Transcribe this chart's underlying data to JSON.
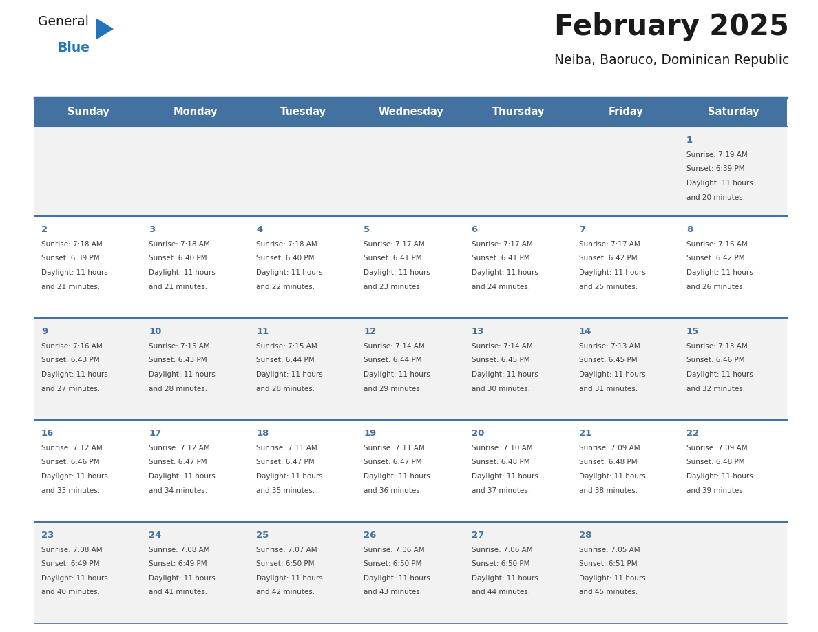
{
  "title": "February 2025",
  "subtitle": "Neiba, Baoruco, Dominican Republic",
  "days_of_week": [
    "Sunday",
    "Monday",
    "Tuesday",
    "Wednesday",
    "Thursday",
    "Friday",
    "Saturday"
  ],
  "header_bg": "#4472a0",
  "header_text": "#ffffff",
  "row_bg_even": "#f2f2f2",
  "row_bg_odd": "#ffffff",
  "separator_color": "#4472a0",
  "day_number_color": "#4472a0",
  "info_text_color": "#404040",
  "title_color": "#1a1a1a",
  "subtitle_color": "#1a1a1a",
  "logo_general_color": "#1a1a1a",
  "logo_blue_color": "#2175bc",
  "calendar_data": [
    {
      "day": 1,
      "col": 6,
      "row": 0,
      "sunrise": "7:19 AM",
      "sunset": "6:39 PM",
      "daylight_hours": 11,
      "daylight_minutes": 20
    },
    {
      "day": 2,
      "col": 0,
      "row": 1,
      "sunrise": "7:18 AM",
      "sunset": "6:39 PM",
      "daylight_hours": 11,
      "daylight_minutes": 21
    },
    {
      "day": 3,
      "col": 1,
      "row": 1,
      "sunrise": "7:18 AM",
      "sunset": "6:40 PM",
      "daylight_hours": 11,
      "daylight_minutes": 21
    },
    {
      "day": 4,
      "col": 2,
      "row": 1,
      "sunrise": "7:18 AM",
      "sunset": "6:40 PM",
      "daylight_hours": 11,
      "daylight_minutes": 22
    },
    {
      "day": 5,
      "col": 3,
      "row": 1,
      "sunrise": "7:17 AM",
      "sunset": "6:41 PM",
      "daylight_hours": 11,
      "daylight_minutes": 23
    },
    {
      "day": 6,
      "col": 4,
      "row": 1,
      "sunrise": "7:17 AM",
      "sunset": "6:41 PM",
      "daylight_hours": 11,
      "daylight_minutes": 24
    },
    {
      "day": 7,
      "col": 5,
      "row": 1,
      "sunrise": "7:17 AM",
      "sunset": "6:42 PM",
      "daylight_hours": 11,
      "daylight_minutes": 25
    },
    {
      "day": 8,
      "col": 6,
      "row": 1,
      "sunrise": "7:16 AM",
      "sunset": "6:42 PM",
      "daylight_hours": 11,
      "daylight_minutes": 26
    },
    {
      "day": 9,
      "col": 0,
      "row": 2,
      "sunrise": "7:16 AM",
      "sunset": "6:43 PM",
      "daylight_hours": 11,
      "daylight_minutes": 27
    },
    {
      "day": 10,
      "col": 1,
      "row": 2,
      "sunrise": "7:15 AM",
      "sunset": "6:43 PM",
      "daylight_hours": 11,
      "daylight_minutes": 28
    },
    {
      "day": 11,
      "col": 2,
      "row": 2,
      "sunrise": "7:15 AM",
      "sunset": "6:44 PM",
      "daylight_hours": 11,
      "daylight_minutes": 28
    },
    {
      "day": 12,
      "col": 3,
      "row": 2,
      "sunrise": "7:14 AM",
      "sunset": "6:44 PM",
      "daylight_hours": 11,
      "daylight_minutes": 29
    },
    {
      "day": 13,
      "col": 4,
      "row": 2,
      "sunrise": "7:14 AM",
      "sunset": "6:45 PM",
      "daylight_hours": 11,
      "daylight_minutes": 30
    },
    {
      "day": 14,
      "col": 5,
      "row": 2,
      "sunrise": "7:13 AM",
      "sunset": "6:45 PM",
      "daylight_hours": 11,
      "daylight_minutes": 31
    },
    {
      "day": 15,
      "col": 6,
      "row": 2,
      "sunrise": "7:13 AM",
      "sunset": "6:46 PM",
      "daylight_hours": 11,
      "daylight_minutes": 32
    },
    {
      "day": 16,
      "col": 0,
      "row": 3,
      "sunrise": "7:12 AM",
      "sunset": "6:46 PM",
      "daylight_hours": 11,
      "daylight_minutes": 33
    },
    {
      "day": 17,
      "col": 1,
      "row": 3,
      "sunrise": "7:12 AM",
      "sunset": "6:47 PM",
      "daylight_hours": 11,
      "daylight_minutes": 34
    },
    {
      "day": 18,
      "col": 2,
      "row": 3,
      "sunrise": "7:11 AM",
      "sunset": "6:47 PM",
      "daylight_hours": 11,
      "daylight_minutes": 35
    },
    {
      "day": 19,
      "col": 3,
      "row": 3,
      "sunrise": "7:11 AM",
      "sunset": "6:47 PM",
      "daylight_hours": 11,
      "daylight_minutes": 36
    },
    {
      "day": 20,
      "col": 4,
      "row": 3,
      "sunrise": "7:10 AM",
      "sunset": "6:48 PM",
      "daylight_hours": 11,
      "daylight_minutes": 37
    },
    {
      "day": 21,
      "col": 5,
      "row": 3,
      "sunrise": "7:09 AM",
      "sunset": "6:48 PM",
      "daylight_hours": 11,
      "daylight_minutes": 38
    },
    {
      "day": 22,
      "col": 6,
      "row": 3,
      "sunrise": "7:09 AM",
      "sunset": "6:48 PM",
      "daylight_hours": 11,
      "daylight_minutes": 39
    },
    {
      "day": 23,
      "col": 0,
      "row": 4,
      "sunrise": "7:08 AM",
      "sunset": "6:49 PM",
      "daylight_hours": 11,
      "daylight_minutes": 40
    },
    {
      "day": 24,
      "col": 1,
      "row": 4,
      "sunrise": "7:08 AM",
      "sunset": "6:49 PM",
      "daylight_hours": 11,
      "daylight_minutes": 41
    },
    {
      "day": 25,
      "col": 2,
      "row": 4,
      "sunrise": "7:07 AM",
      "sunset": "6:50 PM",
      "daylight_hours": 11,
      "daylight_minutes": 42
    },
    {
      "day": 26,
      "col": 3,
      "row": 4,
      "sunrise": "7:06 AM",
      "sunset": "6:50 PM",
      "daylight_hours": 11,
      "daylight_minutes": 43
    },
    {
      "day": 27,
      "col": 4,
      "row": 4,
      "sunrise": "7:06 AM",
      "sunset": "6:50 PM",
      "daylight_hours": 11,
      "daylight_minutes": 44
    },
    {
      "day": 28,
      "col": 5,
      "row": 4,
      "sunrise": "7:05 AM",
      "sunset": "6:51 PM",
      "daylight_hours": 11,
      "daylight_minutes": 45
    }
  ],
  "fig_width": 11.88,
  "fig_height": 9.18,
  "dpi": 100
}
